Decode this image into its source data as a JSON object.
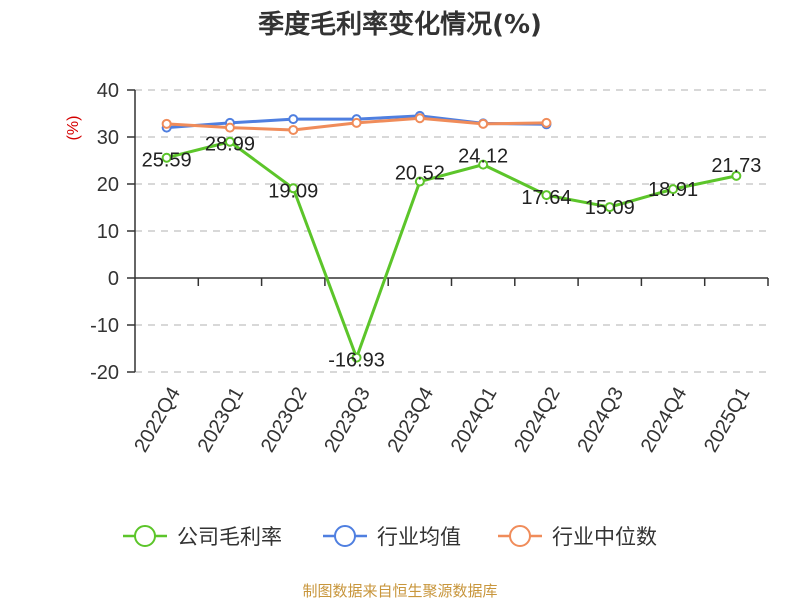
{
  "chart_data": {
    "type": "line",
    "title": "季度毛利率变化情况(%)",
    "ylabel": "(%)",
    "xlabel": "",
    "ylim": [
      -20,
      40
    ],
    "yticks": [
      40,
      30,
      20,
      10,
      0,
      -10,
      -20
    ],
    "grid": true,
    "legend_position": "bottom",
    "categories": [
      "2022Q4",
      "2023Q1",
      "2023Q2",
      "2023Q3",
      "2023Q4",
      "2024Q1",
      "2024Q2",
      "2024Q3",
      "2024Q4",
      "2025Q1"
    ],
    "series": [
      {
        "name": "公司毛利率",
        "color": "#5cc52a",
        "show_labels": true,
        "values": [
          25.59,
          28.99,
          19.09,
          -16.93,
          20.52,
          24.12,
          17.64,
          15.09,
          18.91,
          21.73
        ],
        "labels": [
          "25.59",
          "28.99",
          "19.09",
          "-16.93",
          "20.52",
          "24.12",
          "17.64",
          "15.09",
          "18.91",
          "21.73"
        ]
      },
      {
        "name": "行业均值",
        "color": "#4f7fe0",
        "show_labels": false,
        "values": [
          32.0,
          33.0,
          33.8,
          33.8,
          34.5,
          32.9,
          32.7,
          null,
          null,
          null
        ]
      },
      {
        "name": "行业中位数",
        "color": "#f08c5a",
        "show_labels": false,
        "values": [
          32.8,
          32.0,
          31.5,
          33.0,
          34.0,
          32.8,
          33.0,
          null,
          null,
          null
        ]
      }
    ]
  },
  "source_text": "制图数据来自恒生聚源数据库",
  "colors": {
    "axis_label": "#d40000",
    "source": "#c8963c",
    "grid": "#cccccc"
  }
}
